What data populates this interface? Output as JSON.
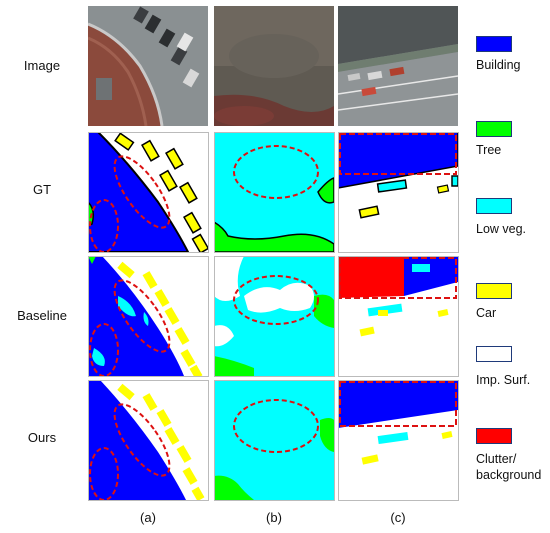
{
  "figure": {
    "row_labels": [
      "Image",
      "GT",
      "Baseline",
      "Ours"
    ],
    "column_labels": [
      "(a)",
      "(b)",
      "(c)"
    ]
  },
  "legend": {
    "items": [
      {
        "label": "Building",
        "color": "#0000ff"
      },
      {
        "label": "Tree",
        "color": "#00ff00"
      },
      {
        "label": "Low veg.",
        "color": "#00ffff"
      },
      {
        "label": "Car",
        "color": "#ffff00"
      },
      {
        "label": "Imp. Surf.",
        "color": "#ffffff"
      },
      {
        "label": "Clutter/",
        "label_line2": "background",
        "color": "#ff0000"
      }
    ]
  },
  "colors": {
    "building": "#0000ff",
    "tree": "#00ff00",
    "low_veg": "#00ffff",
    "car": "#ffff00",
    "imp_surf": "#ffffff",
    "clutter": "#ff0000",
    "highlight": "#dd1111"
  }
}
